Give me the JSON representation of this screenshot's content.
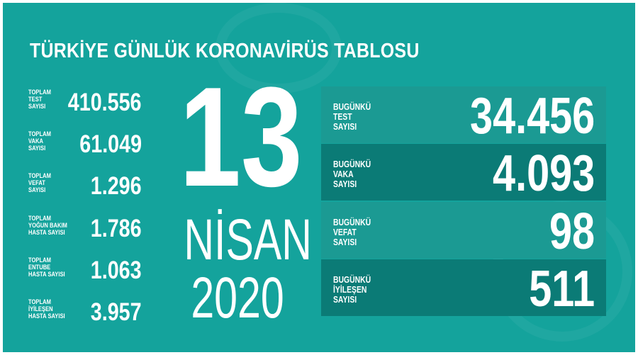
{
  "title": "TÜRKİYE GÜNLÜK KORONAVİRÜS TABLOSU",
  "totals": [
    {
      "label": "TOPLAM\nTEST\nSAYISI",
      "value": "410.556"
    },
    {
      "label": "TOPLAM\nVAKA\nSAYISI",
      "value": "61.049"
    },
    {
      "label": "TOPLAM\nVEFAT\nSAYISI",
      "value": "1.296"
    },
    {
      "label": "TOPLAM\nYOĞUN BAKIM\nHASTA SAYISI",
      "value": "1.786"
    },
    {
      "label": "TOPLAM\nENTUBE\nHASTA SAYISI",
      "value": "1.063"
    },
    {
      "label": "TOPLAM\nİYİLEŞEN\nHASTA SAYISI",
      "value": "3.957"
    }
  ],
  "date": {
    "day": "13",
    "month": "NİSAN",
    "year": "2020"
  },
  "today": [
    {
      "label": "BUGÜNKÜ\nTEST\nSAYISI",
      "value": "34.456"
    },
    {
      "label": "BUGÜNKÜ\nVAKA\nSAYISI",
      "value": "4.093"
    },
    {
      "label": "BUGÜNKÜ\nVEFAT\nSAYISI",
      "value": "98"
    },
    {
      "label": "BUGÜNKÜ\nİYİLEŞEN\nSAYISI",
      "value": "511"
    }
  ],
  "colors": {
    "background": "#14a39c",
    "box_light": "#1b9a93",
    "box_dark": "#0b7b76",
    "text": "#ffffff"
  }
}
